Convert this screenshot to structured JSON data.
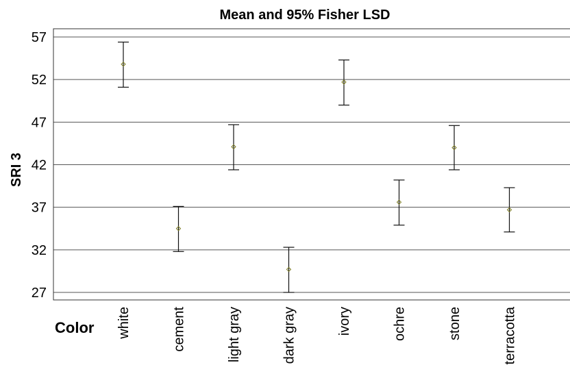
{
  "chart_data": {
    "type": "scatter",
    "title": "Mean and 95% Fisher LSD",
    "xlabel": "Color",
    "ylabel": "SRI 3",
    "ylim": [
      26,
      58
    ],
    "yticks": [
      27,
      32,
      37,
      42,
      47,
      52,
      57
    ],
    "grid": true,
    "categories": [
      "white",
      "cement",
      "light gray",
      "dark gray",
      "ivory",
      "ochre",
      "stone",
      "terracotta"
    ],
    "means": [
      53.8,
      34.5,
      44.1,
      29.7,
      51.7,
      37.6,
      44.0,
      36.7
    ],
    "lower": [
      51.1,
      31.8,
      41.4,
      27.0,
      49.0,
      34.9,
      41.4,
      34.1
    ],
    "upper": [
      56.4,
      37.1,
      46.7,
      32.3,
      54.3,
      40.2,
      46.6,
      39.3
    ]
  }
}
